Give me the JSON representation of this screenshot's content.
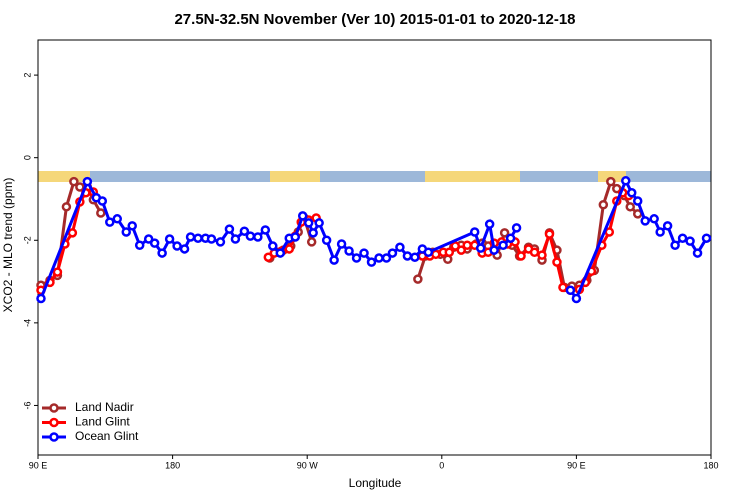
{
  "chart_data": {
    "type": "line",
    "title": "27.5N-32.5N November (Ver 10)   2015-01-01 to 2020-12-18",
    "x_label": "Longitude",
    "y_label": "XCO2 - MLO trend (ppm)",
    "xlim": [
      90,
      540
    ],
    "ylim": [
      -7.2,
      2.85
    ],
    "xticks": [
      {
        "value": 90,
        "label": "90 E"
      },
      {
        "value": 180,
        "label": "180"
      },
      {
        "value": 270,
        "label": "90 W"
      },
      {
        "value": 360,
        "label": "0"
      },
      {
        "value": 450,
        "label": "90 E"
      },
      {
        "value": 540,
        "label": "180"
      }
    ],
    "yticks": [
      -6,
      -4,
      -2,
      0,
      2
    ],
    "legend": "bottom-left",
    "series": [
      {
        "name": "Land Nadir",
        "color": "#a52a2a",
        "x": [
          92,
          98,
          103,
          109,
          114,
          118,
          123,
          127,
          132,
          140,
          245,
          250,
          254,
          259,
          264,
          268,
          273,
          300,
          344,
          349,
          354,
          359,
          364,
          368,
          373,
          377,
          383,
          387,
          391,
          397,
          402,
          407,
          412,
          418,
          422,
          427,
          432,
          437,
          442,
          447,
          452,
          457,
          462,
          468,
          473,
          477,
          482,
          486,
          491
        ],
        "values": [
          -3.09,
          -2.97,
          -2.85,
          -1.19,
          -0.58,
          -0.71,
          -0.71,
          -1.02,
          -1.34,
          null,
          -2.43,
          -2.29,
          -2.24,
          -2.14,
          -1.8,
          -1.46,
          -2.04,
          null,
          -2.94,
          -2.38,
          -2.29,
          -2.34,
          -2.46,
          -2.17,
          -2.12,
          -2.21,
          -2.09,
          -2.07,
          -2.14,
          -2.36,
          -1.82,
          -2.12,
          -2.38,
          -2.17,
          -2.21,
          -2.48,
          -1.82,
          -2.24,
          -3.14,
          -3.11,
          -3.09,
          -2.97,
          -2.73,
          -1.14,
          -0.58,
          -0.75,
          -0.92,
          -1.19,
          -1.36
        ]
      },
      {
        "name": "Land Glint",
        "color": "#ff0000",
        "x": [
          92,
          98,
          103,
          108,
          113,
          118,
          122,
          127,
          140,
          244,
          248,
          253,
          258,
          262,
          266,
          271,
          276,
          300,
          347,
          352,
          356,
          361,
          365,
          369,
          373,
          377,
          382,
          387,
          391,
          395,
          400,
          404,
          409,
          413,
          418,
          422,
          427,
          432,
          437,
          441,
          446,
          452,
          456,
          460,
          467,
          472,
          477,
          481,
          485
        ],
        "values": [
          -3.21,
          -3.02,
          -2.77,
          -2.09,
          -1.82,
          -1.07,
          -0.85,
          -0.83,
          null,
          -2.41,
          -2.31,
          -2.26,
          -2.21,
          -1.9,
          -1.56,
          -1.51,
          -1.46,
          null,
          -2.38,
          -2.38,
          -2.34,
          -2.29,
          -2.29,
          -2.14,
          -2.24,
          -2.12,
          -2.12,
          -2.31,
          -2.29,
          -2.07,
          -2.04,
          -2.09,
          -2.04,
          -2.38,
          -2.21,
          -2.29,
          -2.36,
          -1.85,
          -2.53,
          -3.14,
          -3.21,
          -3.19,
          -3.02,
          -2.75,
          -2.12,
          -1.8,
          -1.05,
          -0.85,
          -0.92
        ]
      },
      {
        "name": "Ocean Glint",
        "color": "#0000ff",
        "x": [
          92,
          123,
          129,
          133,
          138,
          143,
          149,
          153,
          158,
          164,
          168,
          173,
          178,
          183,
          188,
          192,
          197,
          202,
          206,
          212,
          218,
          222,
          228,
          232,
          237,
          242,
          247,
          252,
          258,
          262,
          267,
          271,
          274,
          278,
          283,
          288,
          293,
          298,
          303,
          308,
          313,
          318,
          323,
          327,
          332,
          337,
          342,
          347,
          351,
          382,
          386,
          392,
          395,
          401,
          406,
          410,
          430,
          446,
          450,
          483,
          487,
          491,
          496,
          502,
          506,
          511,
          516,
          521,
          526,
          531,
          537
        ],
        "values": [
          -3.41,
          -0.58,
          -0.97,
          -1.05,
          -1.56,
          -1.48,
          -1.8,
          -1.65,
          -2.12,
          -1.97,
          -2.07,
          -2.31,
          -1.97,
          -2.14,
          -2.21,
          -1.92,
          -1.95,
          -1.95,
          -1.97,
          -2.04,
          -1.73,
          -1.97,
          -1.78,
          -1.9,
          -1.92,
          -1.75,
          -2.14,
          -2.31,
          -1.95,
          -1.92,
          -1.41,
          -1.58,
          -1.82,
          -1.58,
          -2.0,
          -2.48,
          -2.09,
          -2.26,
          -2.43,
          -2.31,
          -2.53,
          -2.43,
          -2.43,
          -2.31,
          -2.17,
          -2.38,
          -2.41,
          -2.21,
          -2.29,
          -1.8,
          -2.19,
          -1.61,
          -2.24,
          -2.12,
          -1.95,
          -1.7,
          null,
          -3.21,
          -3.41,
          -0.56,
          -0.85,
          -1.05,
          -1.53,
          -1.48,
          -1.8,
          -1.65,
          -2.12,
          -1.95,
          -2.02,
          -2.31,
          -1.95
        ]
      }
    ]
  }
}
